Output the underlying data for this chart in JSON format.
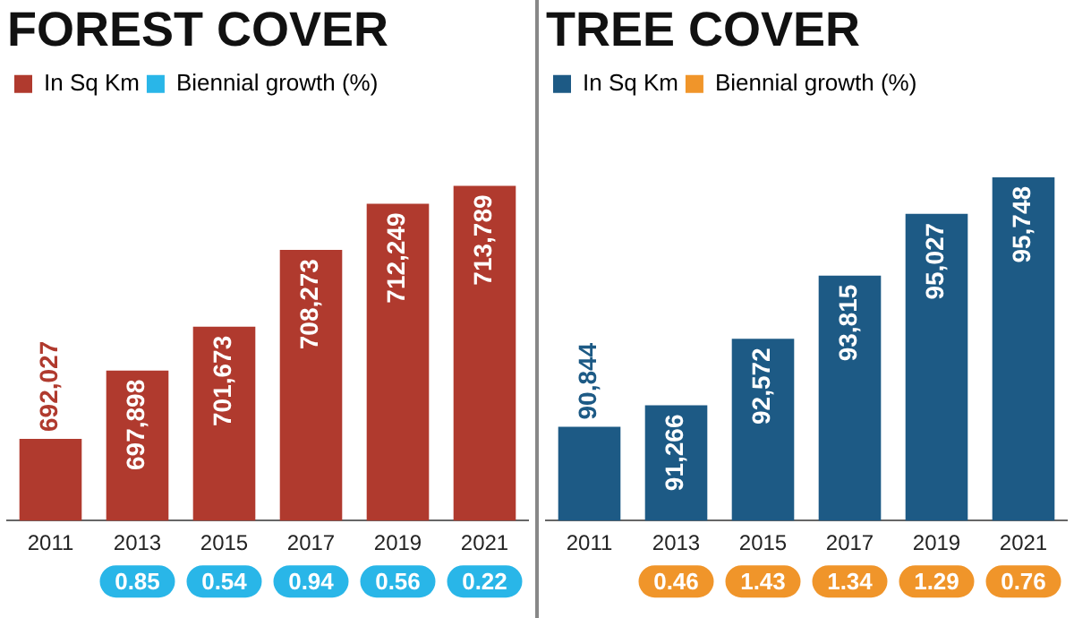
{
  "chart_data": [
    {
      "type": "bar",
      "title": "FOREST COVER",
      "categories": [
        "2011",
        "2013",
        "2015",
        "2017",
        "2019",
        "2021"
      ],
      "tick_labels": "x",
      "legend": "top left",
      "grid": false,
      "series": [
        {
          "name": "In Sq Km",
          "color": "#b03a2e",
          "values": [
            692027,
            697898,
            701673,
            708273,
            712249,
            713789
          ],
          "value_labels": [
            "692,027",
            "697,898",
            "701,673",
            "708,273",
            "712,249",
            "713,789"
          ]
        },
        {
          "name": "Biennial growth (%)",
          "type": "other",
          "color": "#29b6e8",
          "values": [
            null,
            null,
            null,
            null,
            null,
            null
          ]
        }
      ],
      "annotations": [
        {
          "text": "0.85",
          "x": "2013"
        },
        {
          "text": "0.54",
          "x": "2015"
        },
        {
          "text": "0.94",
          "x": "2017"
        },
        {
          "text": "0.56",
          "x": "2019"
        },
        {
          "text": "0.22",
          "x": "2021"
        }
      ]
    },
    {
      "type": "bar",
      "title": "TREE COVER",
      "categories": [
        "2011",
        "2013",
        "2015",
        "2017",
        "2019",
        "2021"
      ],
      "tick_labels": "x",
      "legend": "top left",
      "grid": false,
      "series": [
        {
          "name": "In Sq Km",
          "color": "#1d5a85",
          "values": [
            90844,
            91266,
            92572,
            93815,
            95027,
            95748
          ],
          "value_labels": [
            "90,844",
            "91,266",
            "92,572",
            "93,815",
            "95,027",
            "95,748"
          ]
        },
        {
          "name": "Biennial growth (%)",
          "type": "other",
          "color": "#f0952a",
          "values": [
            null,
            null,
            null,
            null,
            null,
            null
          ]
        }
      ],
      "annotations": [
        {
          "text": "0.46",
          "x": "2013"
        },
        {
          "text": "1.43",
          "x": "2015"
        },
        {
          "text": "1.34",
          "x": "2017"
        },
        {
          "text": "1.29",
          "x": "2019"
        },
        {
          "text": "0.76",
          "x": "2021"
        }
      ]
    }
  ]
}
